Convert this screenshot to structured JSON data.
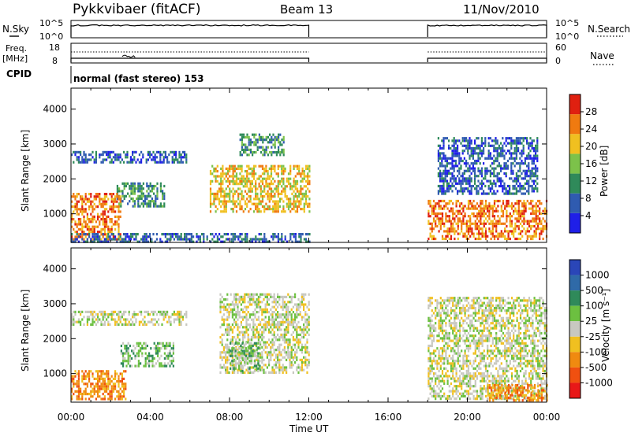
{
  "header": {
    "station": "Pykkvibaer (fitACF)",
    "beam": "Beam 13",
    "date": "11/Nov/2010"
  },
  "noise_panel": {
    "left_label": "N.Sky",
    "right_label": "N.Search",
    "left_ticks": [
      "10^5",
      "10^0"
    ],
    "right_ticks": [
      "10^5",
      "10^0"
    ]
  },
  "freq_panel": {
    "left_label_1": "Freq.",
    "left_label_2": "[MHz]",
    "right_label": "Nave",
    "left_ticks": [
      "18",
      "8"
    ],
    "right_ticks": [
      "60",
      "0"
    ]
  },
  "cpid": {
    "label": "CPID",
    "value": "normal (fast stereo) 153"
  },
  "time_axis": {
    "title": "Time UT",
    "tick_labels": [
      "00:00",
      "04:00",
      "08:00",
      "12:00",
      "16:00",
      "20:00",
      "00:00"
    ],
    "hours": [
      0,
      4,
      8,
      12,
      16,
      20,
      24
    ]
  },
  "range_axis": {
    "title": "Slant Range [km]",
    "tick_labels": [
      "1000",
      "2000",
      "3000",
      "4000"
    ],
    "values": [
      1000,
      2000,
      3000,
      4000
    ],
    "ylim": [
      180,
      4600
    ]
  },
  "power_scale": {
    "title": "Power [dB]",
    "labels": [
      "4",
      "8",
      "12",
      "16",
      "20",
      "24",
      "28"
    ],
    "colors": [
      "#1f1fe8",
      "#2f5bb0",
      "#2f8a5a",
      "#7cc24a",
      "#f0c020",
      "#f07a10",
      "#e02010"
    ]
  },
  "velocity_scale": {
    "title": "Velocity [m s⁻¹]",
    "labels": [
      "1000",
      "500",
      "100",
      "25",
      "-25",
      "-100",
      "-500",
      "-1000"
    ],
    "colors": [
      "#2a46b8",
      "#2f6aa8",
      "#2f8a5a",
      "#6cc040",
      "#c8c8c0",
      "#f0c020",
      "#f08a10",
      "#f05010",
      "#e81818"
    ]
  },
  "chart_data": {
    "type": "heatmap",
    "x_unit": "hours UT",
    "y_unit": "km",
    "operating_intervals_hours": [
      [
        0.0,
        12.0
      ],
      [
        18.0,
        24.0
      ]
    ],
    "panels": [
      {
        "name": "Power",
        "regions": [
          {
            "t0": 0.0,
            "t1": 5.8,
            "r0": 2450,
            "r1": 2800,
            "level": 1
          },
          {
            "t0": 2.3,
            "t1": 4.7,
            "r0": 1200,
            "r1": 1900,
            "level": 2
          },
          {
            "t0": 0.0,
            "t1": 2.5,
            "r0": 250,
            "r1": 1600,
            "level": 5
          },
          {
            "t0": 0.0,
            "t1": 12.0,
            "r0": 200,
            "r1": 450,
            "level": 1
          },
          {
            "t0": 7.0,
            "t1": 12.0,
            "r0": 1100,
            "r1": 2400,
            "level": 4
          },
          {
            "t0": 8.5,
            "t1": 10.7,
            "r0": 2700,
            "r1": 3300,
            "level": 2
          },
          {
            "t0": 18.0,
            "t1": 24.0,
            "r0": 250,
            "r1": 1400,
            "level": 5
          },
          {
            "t0": 18.5,
            "t1": 23.5,
            "r0": 1600,
            "r1": 3200,
            "level": 1
          }
        ]
      },
      {
        "name": "Velocity",
        "regions": [
          {
            "t0": 0.0,
            "t1": 5.8,
            "r0": 2400,
            "r1": 2800,
            "level": 4
          },
          {
            "t0": 2.5,
            "t1": 5.2,
            "r0": 1200,
            "r1": 1900,
            "level": 3
          },
          {
            "t0": 0.0,
            "t1": 2.8,
            "r0": 250,
            "r1": 1100,
            "level": 6
          },
          {
            "t0": 7.5,
            "t1": 12.0,
            "r0": 1000,
            "r1": 3300,
            "level": 4
          },
          {
            "t0": 8.0,
            "t1": 9.5,
            "r0": 1100,
            "r1": 1900,
            "level": 3
          },
          {
            "t0": 18.0,
            "t1": 24.0,
            "r0": 300,
            "r1": 3200,
            "level": 4
          },
          {
            "t0": 21.0,
            "t1": 24.0,
            "r0": 200,
            "r1": 700,
            "level": 6
          }
        ]
      }
    ]
  }
}
